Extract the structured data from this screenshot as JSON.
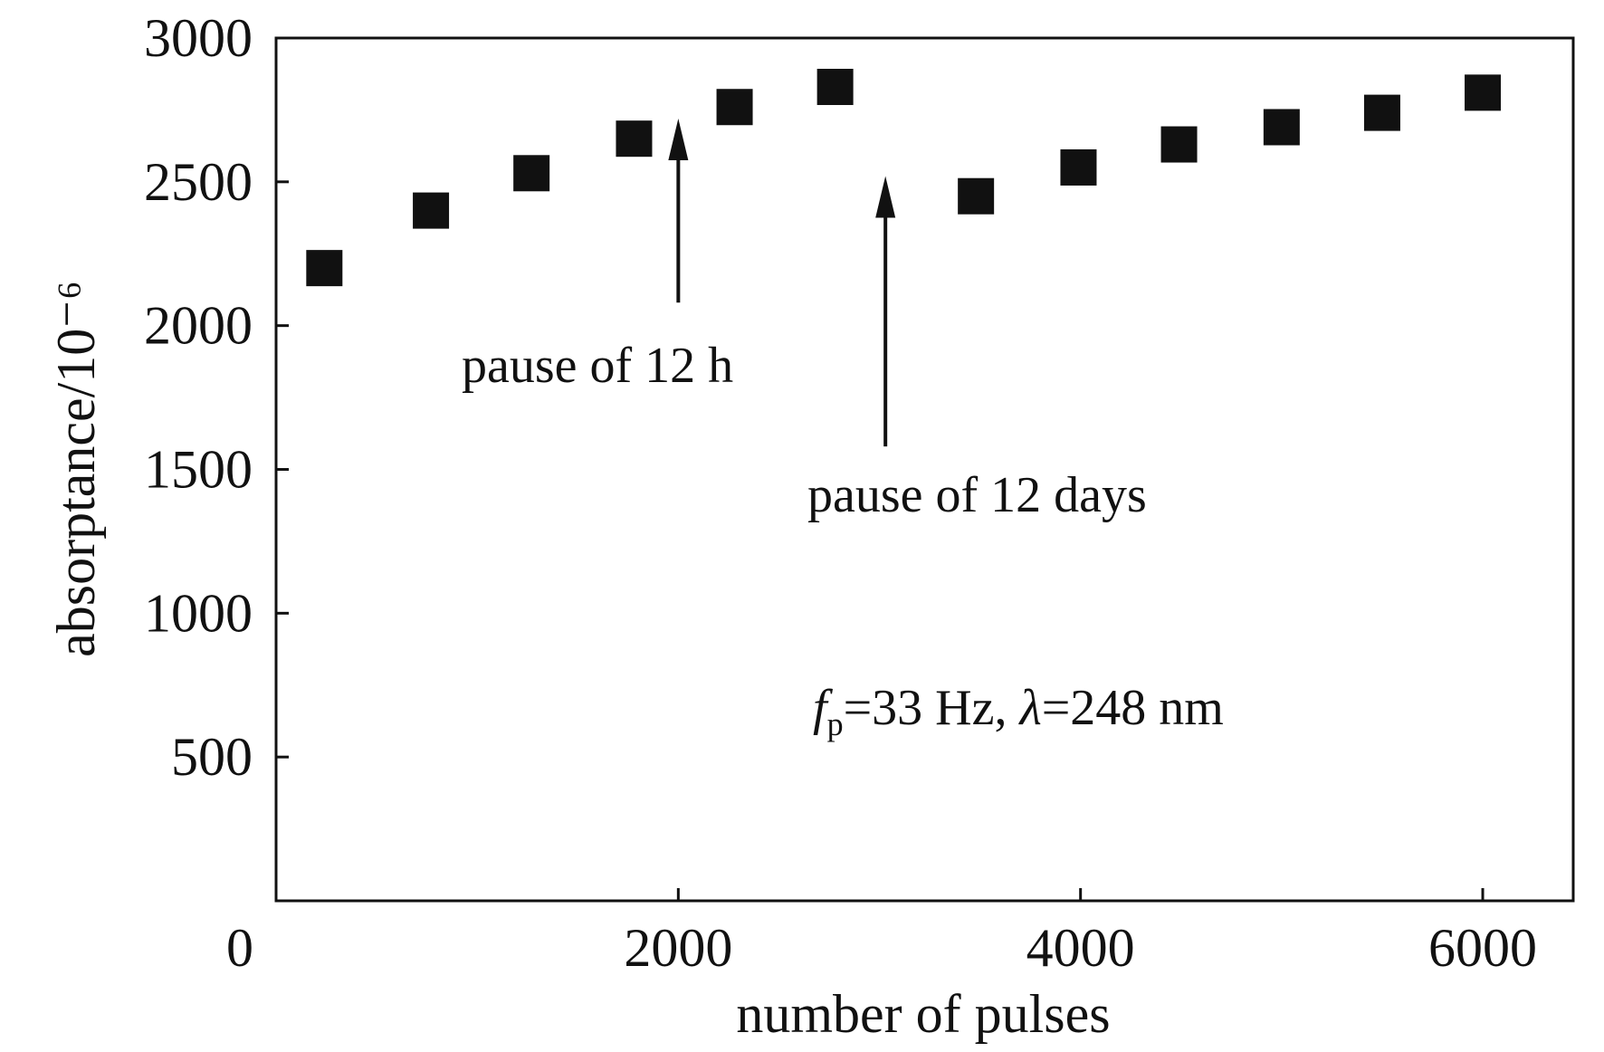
{
  "chart_data": {
    "type": "scatter",
    "title": "",
    "xlabel": "number of pulses",
    "ylabel": "absorptance/10⁻⁶",
    "xlim": [
      0,
      6450
    ],
    "ylim": [
      0,
      3000
    ],
    "x_ticks": [
      {
        "value": 0,
        "label": "0"
      },
      {
        "value": 2000,
        "label": "2000"
      },
      {
        "value": 4000,
        "label": "4000"
      },
      {
        "value": 6000,
        "label": "6000"
      }
    ],
    "y_ticks": [
      {
        "value": 500,
        "label": "500"
      },
      {
        "value": 1000,
        "label": "1000"
      },
      {
        "value": 1500,
        "label": "1500"
      },
      {
        "value": 2000,
        "label": "2000"
      },
      {
        "value": 2500,
        "label": "2500"
      },
      {
        "value": 3000,
        "label": "3000"
      }
    ],
    "grid": false,
    "legend": "none",
    "marker": "filled-square",
    "series": [
      {
        "x": [
          240,
          770,
          1270,
          1780,
          2280,
          2780,
          3480,
          3990,
          4490,
          5000,
          5500,
          6000
        ],
        "y": [
          2200,
          2400,
          2530,
          2650,
          2760,
          2830,
          2450,
          2550,
          2630,
          2690,
          2740,
          2810
        ]
      }
    ],
    "annotations": [
      {
        "text": "pause of 12 h",
        "arrow_x": 2000,
        "arrow_from_y": 2080,
        "arrow_to_y": 2720
      },
      {
        "text": "pause of 12 days",
        "arrow_x": 3030,
        "arrow_from_y": 1580,
        "arrow_to_y": 2520
      }
    ],
    "condition_label": {
      "symbol": "f",
      "subscript": "p",
      "rest1": "=33 Hz, ",
      "lambda": "λ",
      "rest2": "=248 nm"
    }
  },
  "colors": {
    "axis": "#111111",
    "marker": "#111111",
    "background": "#ffffff"
  }
}
